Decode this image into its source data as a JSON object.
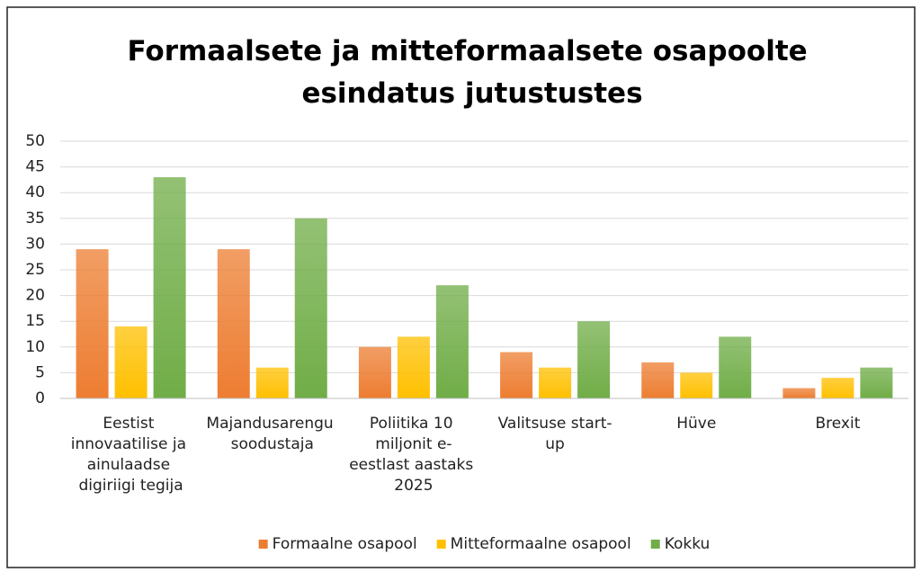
{
  "chart_data": {
    "type": "bar",
    "title": "Formaalsete ja mitteformaalsete osapoolte esindatus jutustustes",
    "categories": [
      "Eestist innovaatilise ja ainulaadse digiriigi tegija",
      "Majandusarengu soodustaja",
      "Poliitika 10 miljonit e-eestlast aastaks 2025",
      "Valitsuse start-up",
      "Hüve",
      "Brexit"
    ],
    "series": [
      {
        "name": "Formaalne osapool",
        "color": "#ed7d31",
        "values": [
          29,
          29,
          10,
          9,
          7,
          2
        ]
      },
      {
        "name": "Mitteformaalne osapool",
        "color": "#ffc000",
        "values": [
          14,
          6,
          12,
          6,
          5,
          4
        ]
      },
      {
        "name": "Kokku",
        "color": "#70ad47",
        "values": [
          43,
          35,
          22,
          15,
          12,
          6
        ]
      }
    ],
    "ylim": [
      0,
      50
    ],
    "yticks": [
      0,
      5,
      10,
      15,
      20,
      25,
      30,
      35,
      40,
      45,
      50
    ],
    "grid": true,
    "legend": "bottom"
  }
}
